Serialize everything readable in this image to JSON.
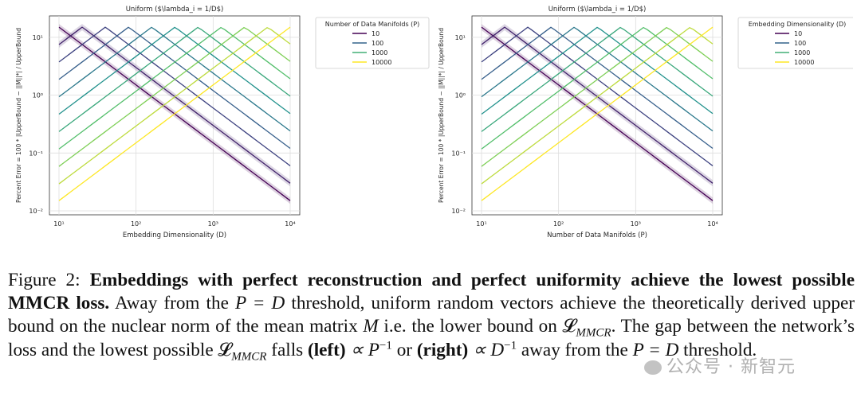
{
  "chart_data": [
    {
      "type": "line",
      "title": "Uniform ($\\lambda_i = 1/D$)",
      "xlabel": "Embedding Dimensionality (D)",
      "ylabel": "Percent Error = 100 * |UpperBound − ||M||*| / UpperBound",
      "xscale": "log",
      "yscale": "log",
      "xlim": [
        10,
        10000
      ],
      "ylim": [
        0.01,
        20
      ],
      "x_ticks": [
        "10¹",
        "10²",
        "10³",
        "10⁴"
      ],
      "y_ticks": [
        "10⁻²",
        "10⁻¹",
        "10⁰",
        "10¹"
      ],
      "grid": true,
      "legend_title": "Number of Data Manifolds (P)",
      "legend_entries": [
        "10",
        "100",
        "1000",
        "10000"
      ],
      "legend_position": "outside-right",
      "series_color_scale": [
        "#440154",
        "#3b528b",
        "#21918c",
        "#5ec962",
        "#fde725"
      ],
      "series_peaks_at": [
        10,
        20,
        40,
        80,
        160,
        320,
        640,
        1280,
        2560,
        5120,
        10000
      ]
    },
    {
      "type": "line",
      "title": "Uniform ($\\lambda_i = 1/D$)",
      "xlabel": "Number of Data Manifolds (P)",
      "ylabel": "Percent Error = 100 * |UpperBound − ||M||*| / UpperBound",
      "xscale": "log",
      "yscale": "log",
      "xlim": [
        10,
        10000
      ],
      "ylim": [
        0.01,
        20
      ],
      "x_ticks": [
        "10¹",
        "10²",
        "10³",
        "10⁴"
      ],
      "y_ticks": [
        "10⁻²",
        "10⁻¹",
        "10⁰",
        "10¹"
      ],
      "grid": true,
      "legend_title": "Embedding Dimensionality (D)",
      "legend_entries": [
        "10",
        "100",
        "1000",
        "10000"
      ],
      "legend_position": "outside-right",
      "series_color_scale": [
        "#440154",
        "#3b528b",
        "#21918c",
        "#5ec962",
        "#fde725"
      ],
      "series_peaks_at": [
        10,
        20,
        40,
        80,
        160,
        320,
        640,
        1280,
        2560,
        5120,
        10000
      ]
    }
  ],
  "caption": {
    "label": "Figure 2:",
    "bold": "Embeddings with perfect reconstruction and perfect uniformity achieve the lowest possible MMCR loss.",
    "text1": "Away from the",
    "eq1": "P = D",
    "text2": "threshold, uniform random vectors achieve the theoretically derived upper bound on the nuclear norm of the mean matrix",
    "var_m": "M",
    "text3": "i.e. the lower bound on",
    "loss": "𝓛",
    "loss_sub": "MMCR",
    "text4": ". The gap between the network’s loss and the lowest possible",
    "text5": "falls",
    "left": "(left)",
    "prop1": "∝ P",
    "exp1": "−1",
    "or": "or",
    "right": "(right)",
    "prop2": "∝ D",
    "exp2": "−1",
    "text6": "away from the",
    "eq2": "P = D",
    "text7": "threshold."
  },
  "watermark": "公众号 · 新智元"
}
